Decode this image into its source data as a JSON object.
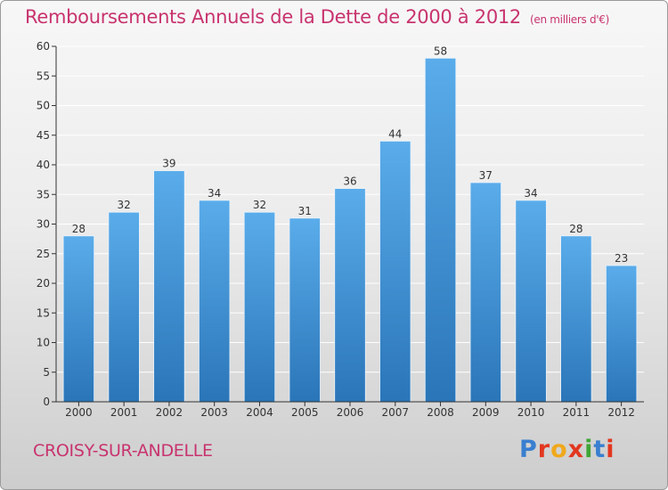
{
  "header": {
    "title": "Remboursements Annuels de la Dette de 2000 à 2012",
    "subtitle": "(en milliers d'€)"
  },
  "footer": {
    "commune": "CROISY-SUR-ANDELLE",
    "logo_text": "Proxiti",
    "logo_colors": [
      "#3a7fd0",
      "#e2371f",
      "#f0a81c",
      "#e2371f",
      "#3fa535",
      "#3a7fd0",
      "#e2371f"
    ]
  },
  "colors": {
    "bar_top": "#5aacea",
    "bar_bottom": "#2a75b8",
    "axis": "#333333",
    "grid": "#ffffff",
    "title": "#c8336e"
  },
  "chart_data": {
    "type": "bar",
    "categories": [
      "2000",
      "2001",
      "2002",
      "2003",
      "2004",
      "2005",
      "2006",
      "2007",
      "2008",
      "2009",
      "2010",
      "2011",
      "2012"
    ],
    "values": [
      28,
      32,
      39,
      34,
      32,
      31,
      36,
      44,
      58,
      37,
      34,
      28,
      23
    ],
    "ylim": [
      0,
      60
    ],
    "yticks": [
      0,
      5,
      10,
      15,
      20,
      25,
      30,
      35,
      40,
      45,
      50,
      55,
      60
    ],
    "grid": true,
    "data_labels": true
  }
}
